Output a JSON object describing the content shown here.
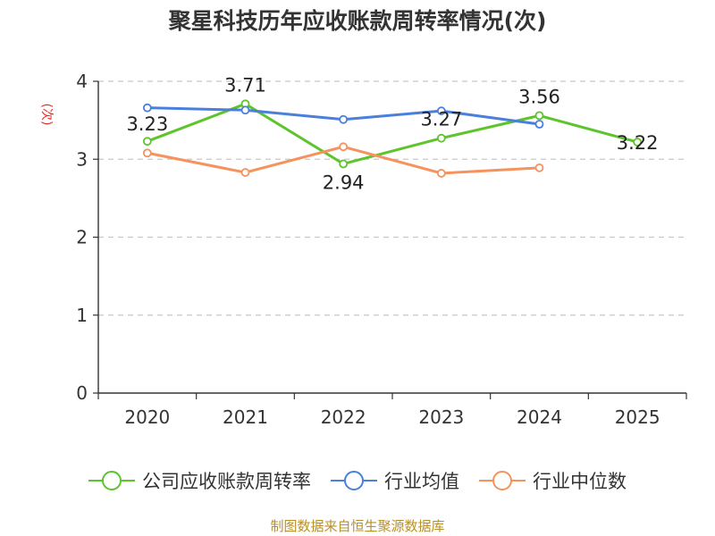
{
  "chart_data": {
    "type": "line",
    "title": "聚星科技历年应收账款周转率情况(次)",
    "ylabel": "(次)",
    "xlabel": "",
    "categories": [
      "2020",
      "2021",
      "2022",
      "2023",
      "2024",
      "2025"
    ],
    "ylim": [
      0,
      4
    ],
    "yticks": [
      "0",
      "1",
      "2",
      "3",
      "4"
    ],
    "grid": true,
    "legend_position": "bottom",
    "series": [
      {
        "name": "公司应收账款周转率",
        "color": "#5ec42c",
        "values": [
          3.23,
          3.71,
          2.94,
          3.27,
          3.56,
          3.22
        ],
        "labels": [
          "3.23",
          "3.71",
          "2.94",
          "3.27",
          "3.56",
          "3.22"
        ]
      },
      {
        "name": "行业均值",
        "color": "#4a7fdb",
        "values": [
          3.66,
          3.63,
          3.51,
          3.62,
          3.45,
          null
        ]
      },
      {
        "name": "行业中位数",
        "color": "#f5925e",
        "values": [
          3.08,
          2.83,
          3.16,
          2.82,
          2.89,
          null
        ]
      }
    ]
  },
  "source_note": "制图数据来自恒生聚源数据库"
}
